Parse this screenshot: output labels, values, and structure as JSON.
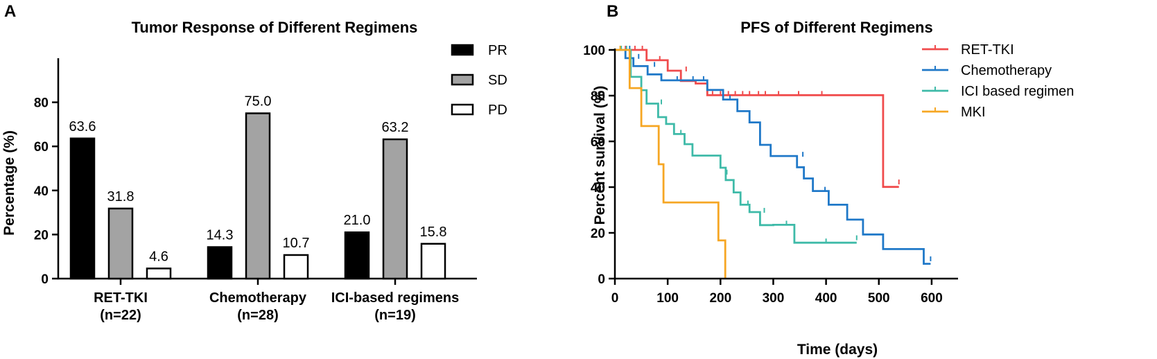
{
  "chart_data": [
    {
      "panel": "A",
      "type": "bar",
      "title": "Tumor Response of Different Regimens",
      "xlabel": "",
      "ylabel": "Percentage (%)",
      "ylim": [
        0,
        100
      ],
      "yticks": [
        0,
        20,
        40,
        60,
        80
      ],
      "categories": [
        {
          "line1": "RET-TKI",
          "line2": "(n=22)"
        },
        {
          "line1": "Chemotherapy",
          "line2": "(n=28)"
        },
        {
          "line1": "ICI-based regimens",
          "line2": "(n=19)"
        }
      ],
      "series": [
        {
          "name": "PR",
          "color": "#000000",
          "values": [
            63.6,
            14.3,
            21.0
          ],
          "labels": [
            "63.6",
            "14.3",
            "21.0"
          ]
        },
        {
          "name": "SD",
          "color": "#a3a3a3",
          "values": [
            31.8,
            75.0,
            63.2
          ],
          "labels": [
            "31.8",
            "75.0",
            "63.2"
          ]
        },
        {
          "name": "PD",
          "color": "#ffffff",
          "values": [
            4.6,
            10.7,
            15.8
          ],
          "labels": [
            "4.6",
            "10.7",
            "15.8"
          ]
        }
      ],
      "legend": "top-right"
    },
    {
      "panel": "B",
      "type": "line",
      "subtype": "kaplan-meier step",
      "title": "PFS of Different Regimens",
      "xlabel": "Time (days)",
      "ylabel": "Percent survival (%)",
      "xlim": [
        0,
        650
      ],
      "ylim": [
        0,
        100
      ],
      "xticks": [
        0,
        100,
        200,
        300,
        400,
        500,
        600
      ],
      "yticks": [
        0,
        20,
        40,
        60,
        80,
        100
      ],
      "series": [
        {
          "name": "RET-TKI",
          "color": "#f04b4c",
          "steps": [
            [
              0,
              100
            ],
            [
              60,
              100
            ],
            [
              60,
              95.5
            ],
            [
              100,
              95.5
            ],
            [
              100,
              90.9
            ],
            [
              125,
              90.9
            ],
            [
              125,
              86.4
            ],
            [
              153,
              86.4
            ],
            [
              153,
              85.3
            ],
            [
              175,
              85.3
            ],
            [
              175,
              80.2
            ],
            [
              508,
              80.2
            ],
            [
              508,
              40.1
            ],
            [
              538,
              40.1
            ]
          ],
          "censors": [
            [
              20,
              100
            ],
            [
              38,
              100
            ],
            [
              52,
              100
            ],
            [
              85,
              95.5
            ],
            [
              135,
              90.9
            ],
            [
              185,
              80.2
            ],
            [
              200,
              80.2
            ],
            [
              215,
              80.2
            ],
            [
              228,
              80.2
            ],
            [
              242,
              80.2
            ],
            [
              255,
              80.2
            ],
            [
              272,
              80.2
            ],
            [
              285,
              80.2
            ],
            [
              310,
              80.2
            ],
            [
              348,
              80.2
            ],
            [
              392,
              80.2
            ],
            [
              538,
              41.5
            ]
          ]
        },
        {
          "name": "Chemotherapy",
          "color": "#1f78c8",
          "steps": [
            [
              0,
              100
            ],
            [
              20,
              100
            ],
            [
              20,
              96.4
            ],
            [
              35,
              96.4
            ],
            [
              35,
              92.9
            ],
            [
              62,
              92.9
            ],
            [
              62,
              89.3
            ],
            [
              88,
              89.3
            ],
            [
              88,
              86.7
            ],
            [
              175,
              86.7
            ],
            [
              175,
              82.5
            ],
            [
              205,
              82.5
            ],
            [
              205,
              78.3
            ],
            [
              232,
              78.3
            ],
            [
              232,
              73.2
            ],
            [
              255,
              73.2
            ],
            [
              255,
              68.3
            ],
            [
              275,
              68.3
            ],
            [
              275,
              58.5
            ],
            [
              295,
              58.5
            ],
            [
              295,
              53.6
            ],
            [
              345,
              53.6
            ],
            [
              345,
              48.7
            ],
            [
              358,
              48.7
            ],
            [
              358,
              43.8
            ],
            [
              375,
              43.8
            ],
            [
              375,
              38.3
            ],
            [
              405,
              38.3
            ],
            [
              405,
              32.3
            ],
            [
              440,
              32.3
            ],
            [
              440,
              25.8
            ],
            [
              470,
              25.8
            ],
            [
              470,
              19.3
            ],
            [
              508,
              19.3
            ],
            [
              508,
              12.9
            ],
            [
              585,
              12.9
            ],
            [
              585,
              6.5
            ],
            [
              598,
              6.5
            ]
          ],
          "censors": [
            [
              28,
              100
            ],
            [
              45,
              96.4
            ],
            [
              75,
              92.9
            ],
            [
              118,
              86.7
            ],
            [
              148,
              86.7
            ],
            [
              168,
              86.7
            ],
            [
              218,
              78.3
            ],
            [
              356,
              53.6
            ],
            [
              398,
              38.3
            ],
            [
              598,
              7.9
            ]
          ]
        },
        {
          "name": "ICI based regimen",
          "color": "#3ebaa8",
          "steps": [
            [
              0,
              100
            ],
            [
              30,
              100
            ],
            [
              30,
              88.2
            ],
            [
              50,
              88.2
            ],
            [
              50,
              82.4
            ],
            [
              60,
              82.4
            ],
            [
              60,
              76.5
            ],
            [
              82,
              76.5
            ],
            [
              82,
              70.6
            ],
            [
              97,
              70.6
            ],
            [
              97,
              67.6
            ],
            [
              112,
              67.6
            ],
            [
              112,
              63.2
            ],
            [
              132,
              63.2
            ],
            [
              132,
              58.8
            ],
            [
              147,
              58.8
            ],
            [
              147,
              53.8
            ],
            [
              200,
              53.8
            ],
            [
              200,
              48.5
            ],
            [
              210,
              48.5
            ],
            [
              210,
              43.1
            ],
            [
              225,
              43.1
            ],
            [
              225,
              37.7
            ],
            [
              238,
              37.7
            ],
            [
              238,
              32.3
            ],
            [
              255,
              32.3
            ],
            [
              255,
              29.1
            ],
            [
              275,
              29.1
            ],
            [
              275,
              23.4
            ],
            [
              300,
              23.4
            ],
            [
              300,
              23.5
            ],
            [
              340,
              23.5
            ],
            [
              340,
              15.7
            ],
            [
              458,
              15.7
            ]
          ],
          "censors": [
            [
              12,
              100
            ],
            [
              22,
              100
            ],
            [
              88,
              76.5
            ],
            [
              125,
              63.2
            ],
            [
              212,
              45.8
            ],
            [
              252,
              32.3
            ],
            [
              283,
              29.1
            ],
            [
              325,
              23.5
            ],
            [
              400,
              15.7
            ],
            [
              458,
              17.1
            ]
          ]
        },
        {
          "name": "MKI",
          "color": "#f6a623",
          "steps": [
            [
              0,
              100
            ],
            [
              28,
              100
            ],
            [
              28,
              83.3
            ],
            [
              50,
              83.3
            ],
            [
              50,
              66.7
            ],
            [
              83,
              66.7
            ],
            [
              83,
              50
            ],
            [
              92,
              50
            ],
            [
              92,
              33.3
            ],
            [
              196,
              33.3
            ],
            [
              196,
              16.7
            ],
            [
              209,
              16.7
            ],
            [
              209,
              0
            ]
          ],
          "censors": [
            [
              10,
              100
            ]
          ]
        }
      ],
      "legend": "top-right"
    }
  ],
  "panel_labels": [
    "A",
    "B"
  ]
}
